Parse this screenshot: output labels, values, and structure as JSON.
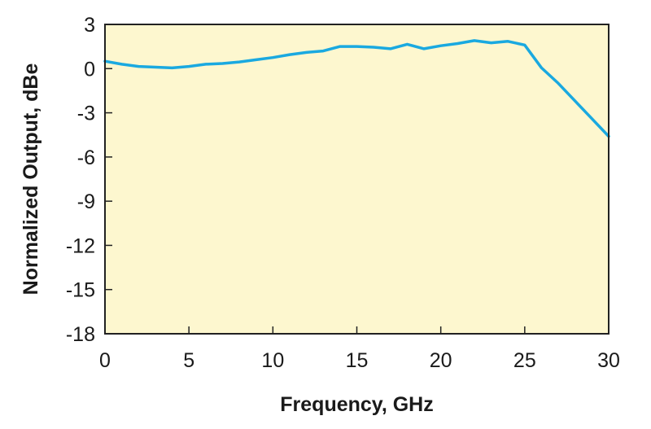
{
  "chart_data": {
    "type": "line",
    "title": "",
    "xlabel": "Frequency, GHz",
    "ylabel": "Normalized Output, dBe",
    "xlim": [
      0,
      30
    ],
    "ylim": [
      -18,
      3
    ],
    "xticks": [
      0,
      5,
      10,
      15,
      20,
      25,
      30
    ],
    "yticks": [
      3,
      0,
      -3,
      -6,
      -9,
      -12,
      -15,
      -18
    ],
    "grid": false,
    "legend": "none",
    "colors": {
      "plot_background": "#fdf7cf",
      "line": "#1aa9e0",
      "axes": "#222222"
    },
    "series": [
      {
        "x": [
          0,
          1,
          2,
          3,
          4,
          5,
          6,
          7,
          8,
          9,
          10,
          11,
          12,
          13,
          14,
          15,
          16,
          17,
          18,
          19,
          20,
          21,
          22,
          23,
          24,
          25,
          26,
          27,
          28,
          29,
          30
        ],
        "y": [
          0.5,
          0.3,
          0.15,
          0.1,
          0.05,
          0.15,
          0.3,
          0.35,
          0.45,
          0.6,
          0.75,
          0.95,
          1.1,
          1.2,
          1.5,
          1.5,
          1.45,
          1.35,
          1.65,
          1.35,
          1.55,
          1.7,
          1.9,
          1.75,
          1.85,
          1.6,
          0.05,
          -1.0,
          -2.2,
          -3.4,
          -4.6
        ]
      }
    ]
  }
}
